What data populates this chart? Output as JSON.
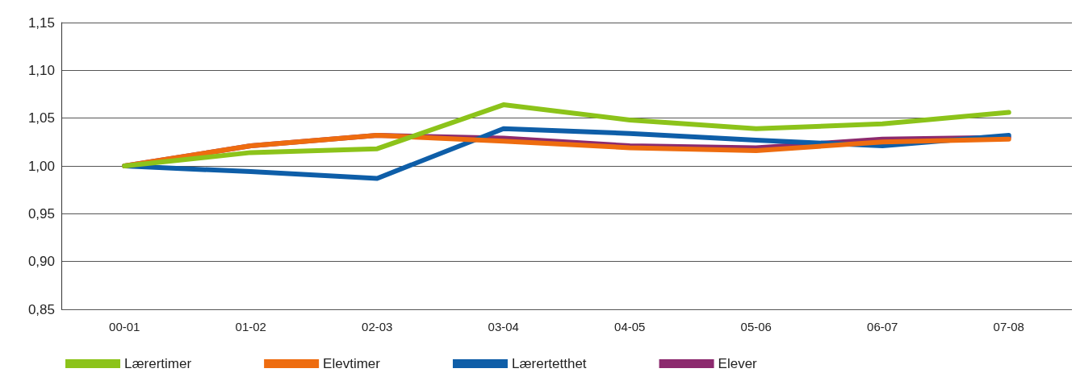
{
  "chart_data": {
    "type": "line",
    "categories": [
      "00-01",
      "01-02",
      "02-03",
      "03-04",
      "04-05",
      "05-06",
      "06-07",
      "07-08"
    ],
    "series": [
      {
        "name": "Lærertimer",
        "color": "#8cc31a",
        "values": [
          1.0,
          1.014,
          1.018,
          1.064,
          1.048,
          1.039,
          1.044,
          1.056
        ]
      },
      {
        "name": "Elevtimer",
        "color": "#ee6c0f",
        "values": [
          1.0,
          1.021,
          1.032,
          1.026,
          1.019,
          1.016,
          1.025,
          1.028
        ]
      },
      {
        "name": "Lærertetthet",
        "color": "#0e5ea8",
        "values": [
          1.0,
          0.994,
          0.987,
          1.039,
          1.034,
          1.027,
          1.021,
          1.032
        ]
      },
      {
        "name": "Elever",
        "color": "#8c2a6e",
        "values": [
          1.0,
          1.021,
          1.032,
          1.029,
          1.021,
          1.019,
          1.028,
          1.03
        ]
      }
    ],
    "ylim": [
      0.85,
      1.15
    ],
    "yticks": [
      {
        "value": 0.85,
        "label": "0,85"
      },
      {
        "value": 0.9,
        "label": "0,90"
      },
      {
        "value": 0.95,
        "label": "0,95"
      },
      {
        "value": 1.0,
        "label": "1,00"
      },
      {
        "value": 1.05,
        "label": "1,05"
      },
      {
        "value": 1.1,
        "label": "1,10"
      },
      {
        "value": 1.15,
        "label": "1,15"
      }
    ],
    "grid": "y",
    "legend": "bottom left",
    "marker": "none",
    "line_style": "solid"
  }
}
